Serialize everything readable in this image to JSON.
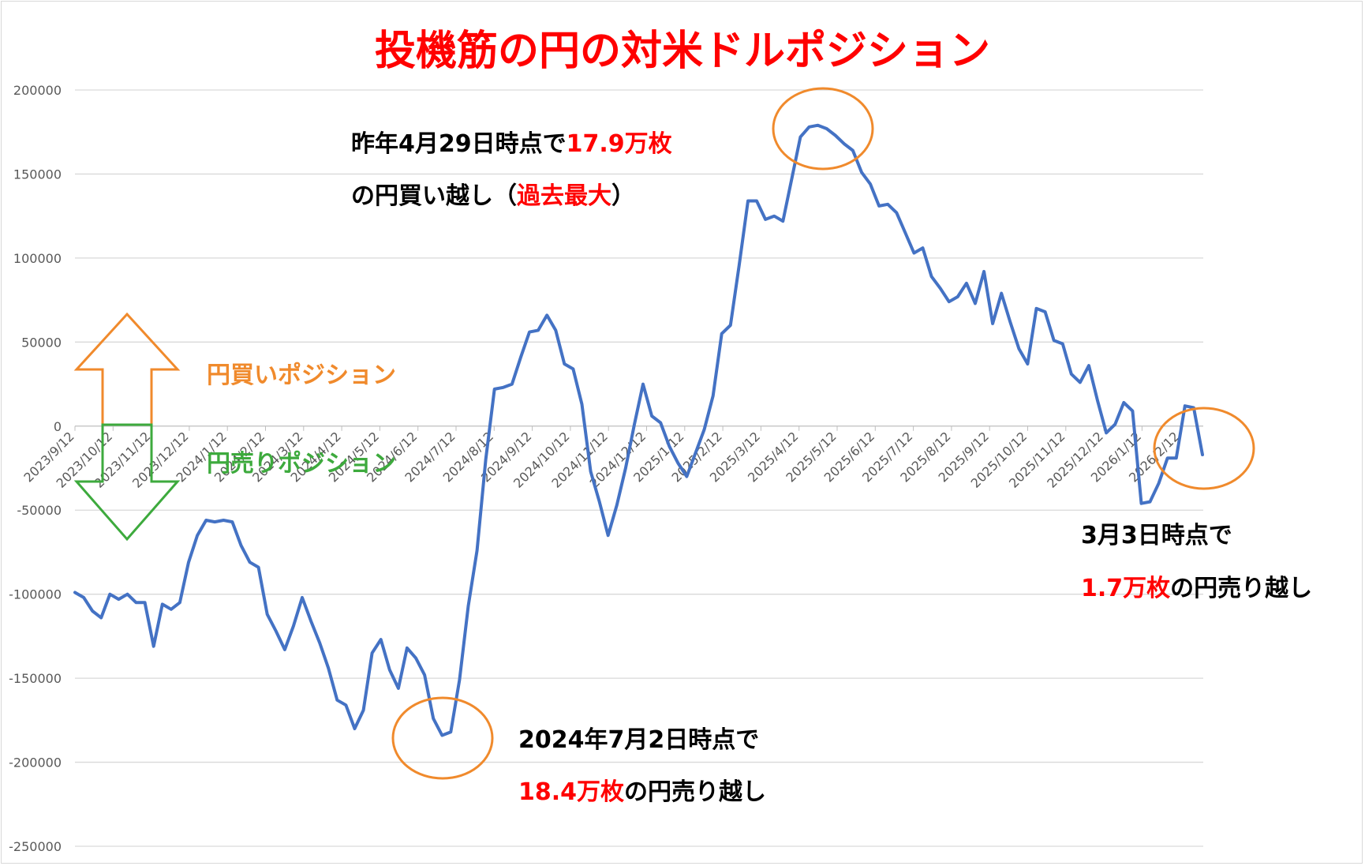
{
  "chart_data": {
    "type": "line",
    "title": "投機筋の円の対米ドルポジション",
    "xlabel": "",
    "ylabel": "",
    "ylim": [
      -250000,
      200000
    ],
    "yticks": [
      200000,
      150000,
      100000,
      50000,
      0,
      -50000,
      -100000,
      -150000,
      -200000,
      -250000
    ],
    "grid": true,
    "x_tick_labels": [
      "2023/9/12",
      "2023/10/12",
      "2023/11/12",
      "2023/12/12",
      "2024/1/12",
      "2024/2/12",
      "2024/3/12",
      "2024/4/12",
      "2024/5/12",
      "2024/6/12",
      "2024/7/12",
      "2024/8/12",
      "2024/9/12",
      "2024/10/12",
      "2024/11/12",
      "2024/12/12",
      "2025/1/12",
      "2025/2/12",
      "2025/3/12",
      "2025/4/12",
      "2025/5/12",
      "2025/6/12",
      "2025/7/12",
      "2025/8/12",
      "2025/9/12",
      "2025/10/12",
      "2025/11/12",
      "2025/12/12",
      "2026/1/12",
      "2026/2/12"
    ],
    "series": [
      {
        "name": "",
        "color": "#4472c4",
        "values": [
          -99000,
          -102000,
          -110000,
          -114000,
          -100000,
          -103000,
          -100000,
          -105000,
          -105000,
          -131000,
          -106000,
          -109000,
          -105000,
          -81000,
          -65000,
          -56000,
          -57000,
          -56000,
          -57000,
          -71000,
          -81000,
          -84000,
          -112000,
          -122000,
          -133000,
          -119000,
          -102000,
          -116000,
          -129000,
          -144000,
          -163000,
          -166000,
          -180000,
          -169000,
          -135000,
          -127000,
          -145000,
          -156000,
          -132000,
          -138000,
          -148000,
          -174000,
          -184000,
          -182000,
          -151000,
          -107000,
          -74000,
          -20000,
          22000,
          23000,
          25000,
          41000,
          56000,
          57000,
          66000,
          57000,
          37000,
          34000,
          13000,
          -27000,
          -45000,
          -65000,
          -47000,
          -25000,
          1000,
          25000,
          6000,
          2000,
          -12000,
          -22000,
          -30000,
          -16000,
          -2000,
          18000,
          55000,
          60000,
          96000,
          134000,
          134000,
          123000,
          125000,
          122000,
          147000,
          172000,
          178000,
          179000,
          177000,
          173000,
          168000,
          164000,
          151000,
          144000,
          131000,
          132000,
          127000,
          115000,
          103000,
          106000,
          89000,
          82000,
          74000,
          77000,
          85000,
          73000,
          92000,
          61000,
          79000,
          62000,
          46000,
          37000,
          70000,
          68000,
          51000,
          49000,
          31000,
          26000,
          36000,
          15000,
          -4000,
          1000,
          14000,
          9000,
          -46000,
          -45000,
          -34000,
          -19000,
          -19000,
          12000,
          11000,
          -17000
        ]
      }
    ],
    "annotations": {
      "peak_line1_prefix": "昨年4月29日時点で",
      "peak_line1_value": "17.9万枚",
      "peak_line2_prefix": "の円買い越し（",
      "peak_line2_value": "過去最大",
      "peak_line2_suffix": "）",
      "low_line1": "2024年7月2日時点で",
      "low_line2_value": "18.4万枚",
      "low_line2_suffix": "の円売り越し",
      "latest_line1": "3月3日時点で",
      "latest_line2_value": "1.7万枚",
      "latest_line2_suffix": "の円売り越し",
      "buy_label": "円買いポジション",
      "sell_label": "円売りポジション"
    },
    "colors": {
      "title": "#ff0000",
      "highlight": "#ff0000",
      "circle": "#f08a2c",
      "buy": "#f08a2c",
      "sell": "#3daa3d",
      "axis_text": "#595959",
      "grid": "#d9d9d9",
      "annotation": "#000000"
    }
  }
}
